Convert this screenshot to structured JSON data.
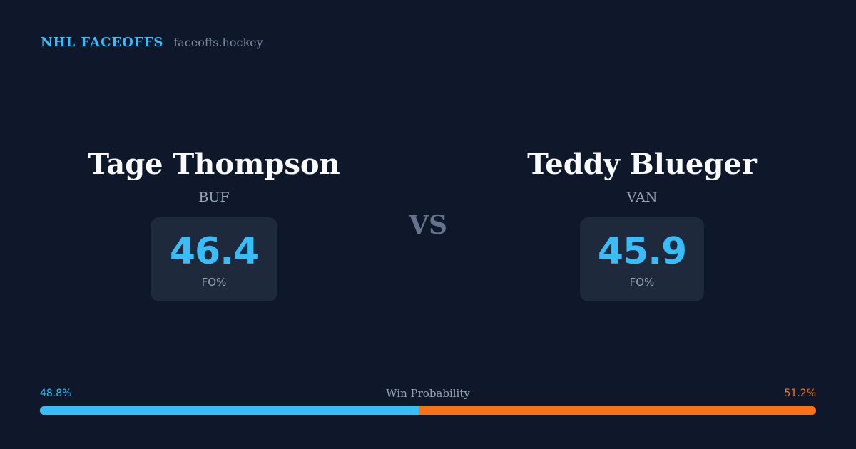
{
  "header": {
    "brand": "NHL FACEOFFS",
    "site": "faceoffs.hockey"
  },
  "players": [
    {
      "name": "Tage Thompson",
      "team": "BUF",
      "stat_value": "46.4",
      "stat_label": "FO%"
    },
    {
      "name": "Teddy Blueger",
      "team": "VAN",
      "stat_value": "45.9",
      "stat_label": "FO%"
    }
  ],
  "versus_label": "VS",
  "win_probability": {
    "title": "Win Probability",
    "left_label": "48.8%",
    "right_label": "51.2%",
    "left_value": 48.8,
    "right_value": 51.2,
    "left_color": "#38bdf8",
    "right_color": "#f97316"
  }
}
